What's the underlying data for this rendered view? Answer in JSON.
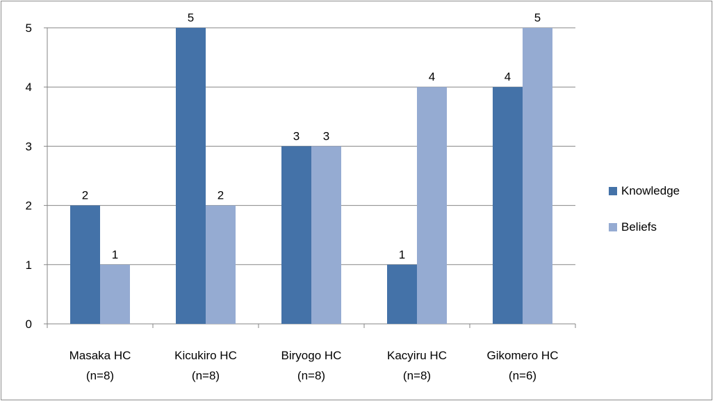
{
  "chart_data": {
    "type": "bar",
    "categories": [
      "Masaka HC",
      "Kicukiro HC",
      "Biryogo HC",
      "Kacyiru HC",
      "Gikomero HC"
    ],
    "category_sublabels": [
      "(n=8)",
      "(n=8)",
      "(n=8)",
      "(n=8)",
      "(n=6)"
    ],
    "series": [
      {
        "name": "Knowledge",
        "values": [
          2,
          5,
          3,
          1,
          4
        ],
        "color": "#4472a8"
      },
      {
        "name": "Beliefs",
        "values": [
          1,
          2,
          3,
          4,
          5
        ],
        "color": "#95abd2"
      }
    ],
    "ylim": [
      0,
      5
    ],
    "yticks": [
      0,
      1,
      2,
      3,
      4,
      5
    ],
    "grid": true,
    "data_labels": true,
    "legend_position": "right"
  }
}
